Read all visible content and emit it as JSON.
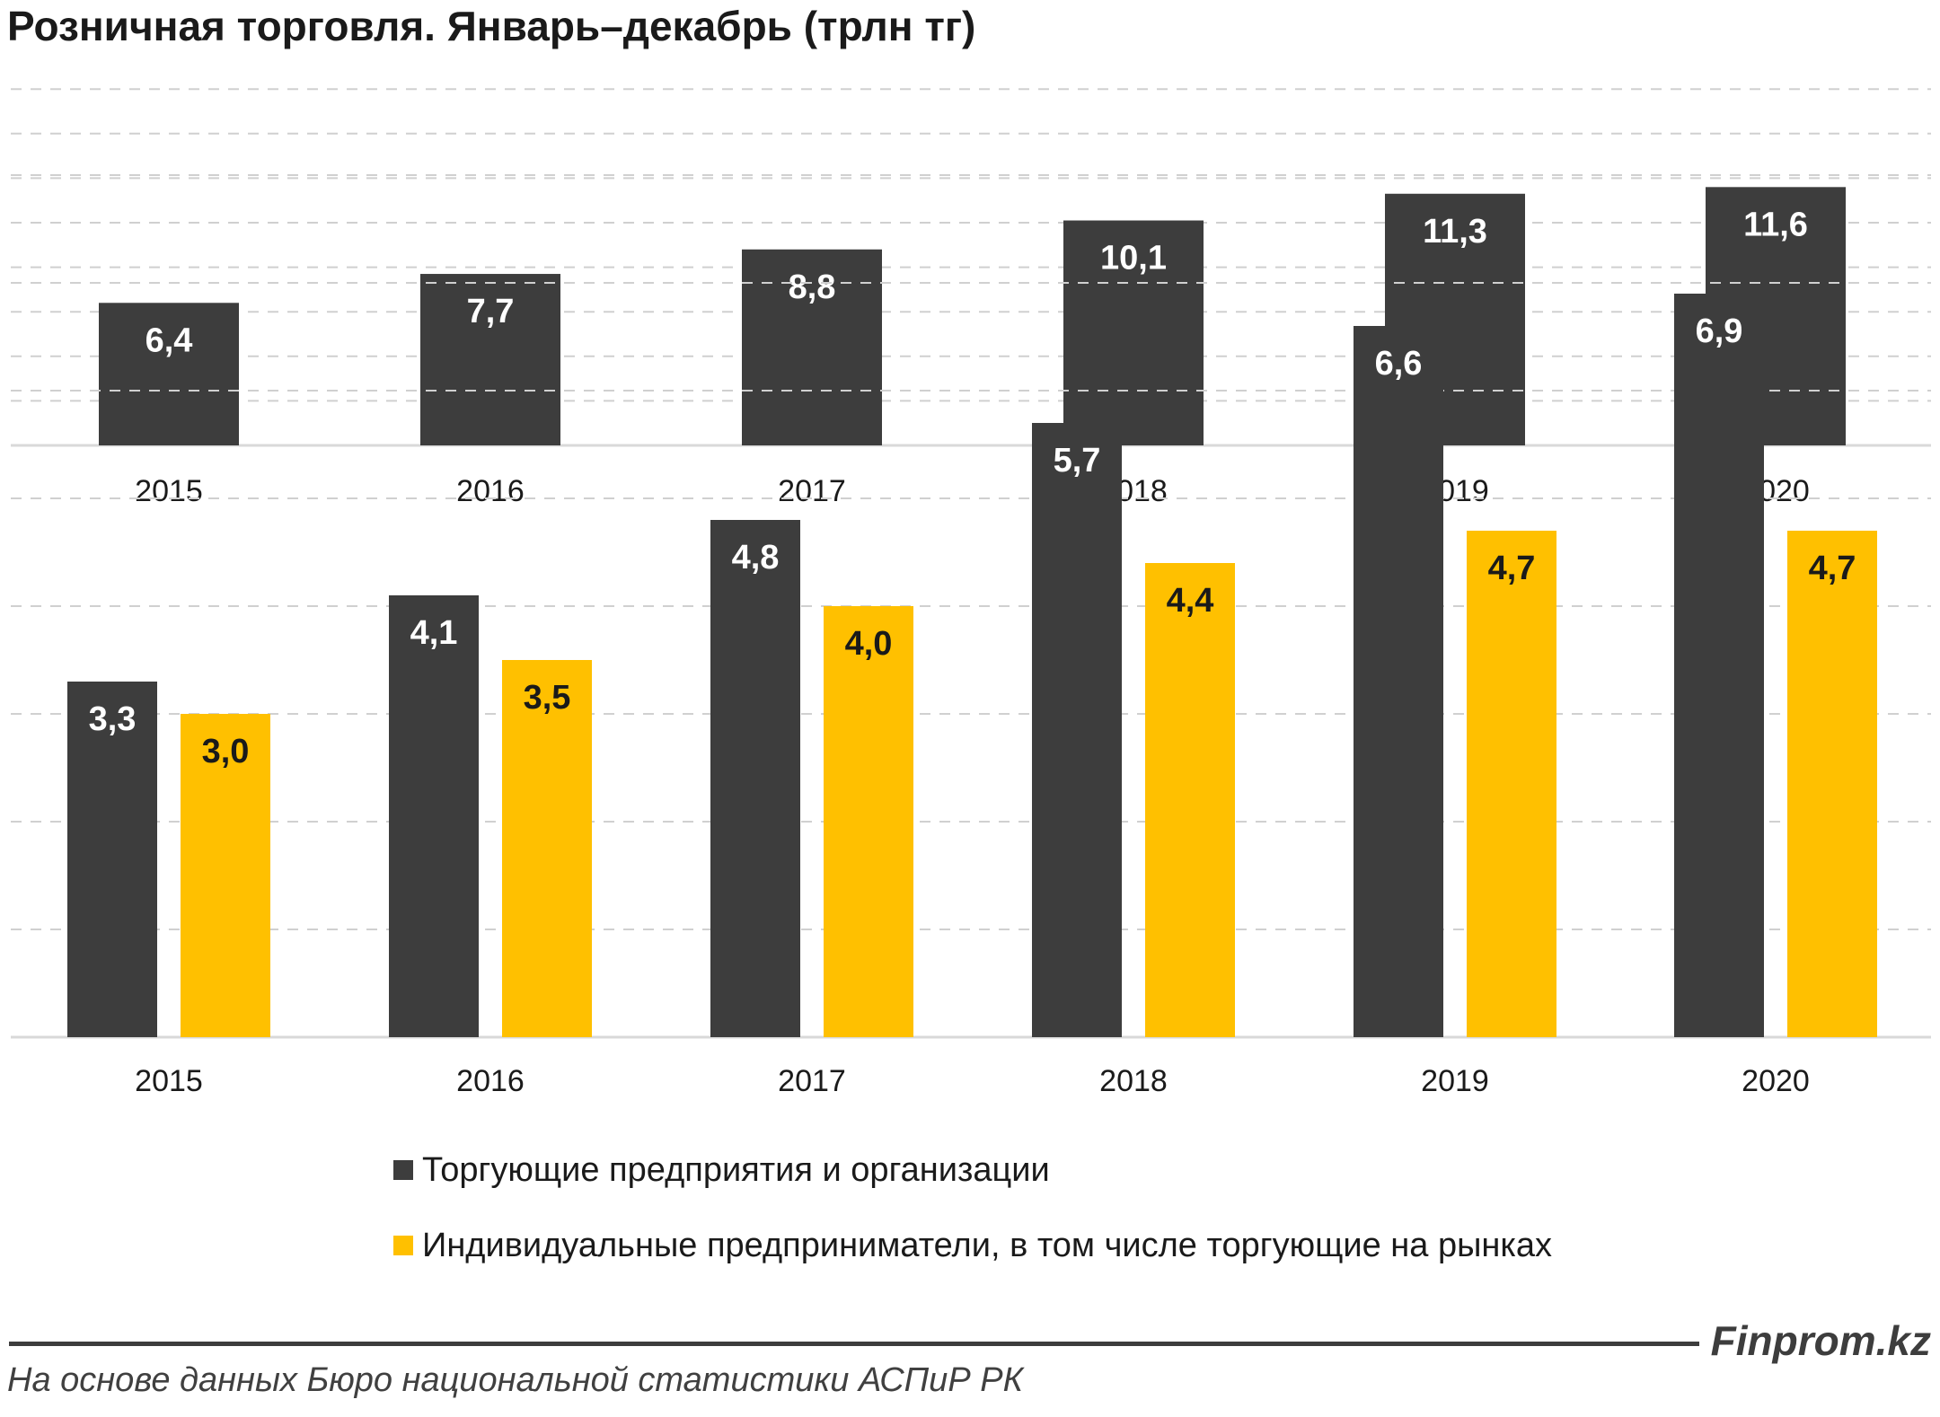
{
  "title": "Розничная торговля. Январь–декабрь (трлн тг)",
  "colors": {
    "dark": "#3d3d3d",
    "yellow": "#ffc000",
    "grid": "#d0d0d0"
  },
  "chart_data": [
    {
      "type": "bar",
      "title": "",
      "categories": [
        "2015",
        "2016",
        "2017",
        "2018",
        "2019",
        "2020"
      ],
      "series": [
        {
          "values": [
            6.4,
            7.7,
            8.8,
            10.1,
            11.3,
            11.6
          ],
          "labels": [
            "6,4",
            "7,7",
            "8,8",
            "10,1",
            "11,3",
            "11,6"
          ],
          "color": "#3d3d3d"
        }
      ],
      "ylim": [
        0,
        16
      ],
      "grid": true,
      "legend": "none"
    },
    {
      "type": "bar",
      "title": "",
      "categories": [
        "2015",
        "2016",
        "2017",
        "2018",
        "2019",
        "2020"
      ],
      "series": [
        {
          "name": "Торгующие предприятия и организации",
          "values": [
            3.3,
            4.1,
            4.8,
            5.7,
            6.6,
            6.9
          ],
          "labels": [
            "3,3",
            "4,1",
            "4,8",
            "5,7",
            "6,6",
            "6,9"
          ],
          "color": "#3d3d3d"
        },
        {
          "name": "Индивидуальные предприниматели, в том числе торгующие на рынках",
          "values": [
            3.0,
            3.5,
            4.0,
            4.4,
            4.7,
            4.7
          ],
          "labels": [
            "3,0",
            "3,5",
            "4,0",
            "4,4",
            "4,7",
            "4,7"
          ],
          "color": "#ffc000"
        }
      ],
      "ylim": [
        0,
        8
      ],
      "grid": true,
      "legend": "bottom"
    }
  ],
  "footer": {
    "brand": "Finprom.kz",
    "source": "На основе данных Бюро национальной статистики АСПиР РК"
  }
}
